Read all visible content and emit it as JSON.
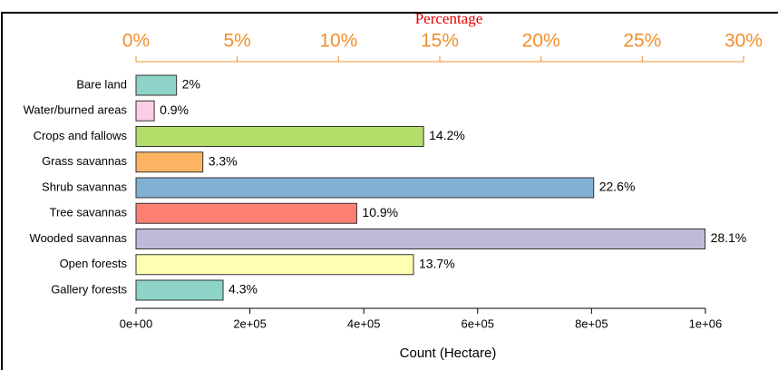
{
  "chart_data": {
    "type": "bar",
    "orientation": "horizontal",
    "title": "Percentage",
    "x2_label": "Count (Hectare)",
    "categories": [
      "Bare land",
      "Water/burned areas",
      "Crops and fallows",
      "Grass savannas",
      "Shrub savannas",
      "Tree savannas",
      "Wooded savannas",
      "Open forests",
      "Gallery forests"
    ],
    "values": [
      2,
      0.9,
      14.2,
      3.3,
      22.6,
      10.9,
      28.1,
      13.7,
      4.3
    ],
    "value_labels": [
      "2%",
      "0.9%",
      "14.2%",
      "3.3%",
      "22.6%",
      "10.9%",
      "28.1%",
      "13.7%",
      "4.3%"
    ],
    "colors": [
      "#8dd3c7",
      "#fbcde6",
      "#b3de69",
      "#fdb462",
      "#80b1d3",
      "#fb8072",
      "#bebada",
      "#ffffb3",
      "#8dd3c7"
    ],
    "xlim": [
      0,
      30
    ],
    "xticks": [
      {
        "value": 0,
        "label": "0%"
      },
      {
        "value": 5,
        "label": "5%"
      },
      {
        "value": 10,
        "label": "10%"
      },
      {
        "value": 15,
        "label": "15%"
      },
      {
        "value": 20,
        "label": "20%"
      },
      {
        "value": 25,
        "label": "25%"
      },
      {
        "value": 30,
        "label": "30%"
      }
    ],
    "x2lim": [
      0,
      1067000
    ],
    "x2ticks": [
      {
        "value": 0,
        "label": "0e+00"
      },
      {
        "value": 200000,
        "label": "2e+05"
      },
      {
        "value": 400000,
        "label": "4e+05"
      },
      {
        "value": 600000,
        "label": "6e+05"
      },
      {
        "value": 800000,
        "label": "8e+05"
      },
      {
        "value": 1000000,
        "label": "1e+06"
      }
    ]
  }
}
